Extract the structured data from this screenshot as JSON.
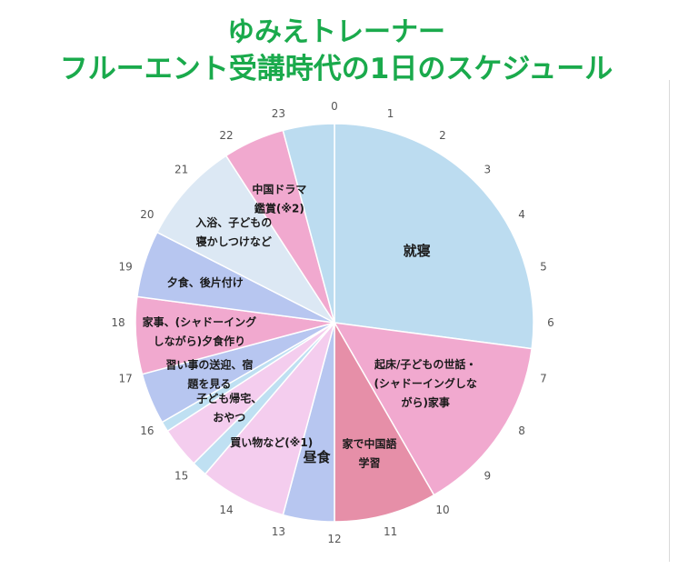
{
  "title": {
    "line1": "ゆみえトレーナー",
    "line2": "フルーエント受講時代の1日のスケジュール"
  },
  "chart_data": {
    "type": "pie",
    "hour_ticks": [
      "0",
      "1",
      "2",
      "3",
      "4",
      "5",
      "6",
      "7",
      "8",
      "9",
      "10",
      "11",
      "12",
      "13",
      "14",
      "15",
      "16",
      "17",
      "18",
      "19",
      "20",
      "21",
      "22",
      "23"
    ],
    "slices": [
      {
        "label": "就寝",
        "start": 0,
        "end": 6.5,
        "color": "#bcdcf0",
        "text_lines": [
          "就寝"
        ],
        "big": true
      },
      {
        "label": "起床/子どもの世話・(シャドーイングしながら)家事",
        "start": 6.5,
        "end": 10,
        "color": "#f1a9cf",
        "text_lines": [
          "起床/子どもの世話・",
          "(シャドーイングしな",
          "がら)家事"
        ],
        "big": false
      },
      {
        "label": "家で中国語学習",
        "start": 10,
        "end": 12,
        "color": "#e68fa8",
        "text_lines": [
          "家で中国語",
          "学習"
        ],
        "big": false
      },
      {
        "label": "昼食",
        "start": 12,
        "end": 13,
        "color": "#b7c6f0",
        "text_lines": [
          "昼食"
        ],
        "big": true
      },
      {
        "label": "買い物など(※1)",
        "start": 13,
        "end": 14.7,
        "color": "#f4cdee",
        "text_lines": [
          "買い物など(※1)"
        ],
        "big": false
      },
      {
        "label": "",
        "start": 14.7,
        "end": 15,
        "color": "#bfe0f2",
        "text_lines": [],
        "big": false
      },
      {
        "label": "子ども帰宅、おやつ",
        "start": 15,
        "end": 15.8,
        "color": "#f4cdee",
        "text_lines": [
          "子ども帰宅、",
          "おやつ"
        ],
        "big": false
      },
      {
        "label": "",
        "start": 15.8,
        "end": 16,
        "color": "#bfe0f2",
        "text_lines": [],
        "big": false
      },
      {
        "label": "習い事の送迎、宿題を見る",
        "start": 16,
        "end": 17,
        "color": "#b7c6f0",
        "text_lines": [
          "習い事の送迎、宿",
          "題を見る"
        ],
        "big": false
      },
      {
        "label": "家事、(シャドーイングしながら)夕食作り",
        "start": 17,
        "end": 18.5,
        "color": "#f1a9cf",
        "text_lines": [
          "家事、(シャドーイング",
          "しながら)夕食作り"
        ],
        "big": false
      },
      {
        "label": "夕食、後片付け",
        "start": 18.5,
        "end": 19.8,
        "color": "#b7c6f0",
        "text_lines": [
          "夕食、後片付け"
        ],
        "big": false
      },
      {
        "label": "入浴、子どもの寝かしつけなど",
        "start": 19.8,
        "end": 21.8,
        "color": "#dce8f4",
        "text_lines": [
          "入浴、子どもの",
          "寝かしつけなど"
        ],
        "big": false
      },
      {
        "label": "中国ドラマ鑑賞(※2)",
        "start": 21.8,
        "end": 23,
        "color": "#f1a9cf",
        "text_lines": [
          "中国ドラマ",
          "鑑賞(※2)"
        ],
        "big": false
      },
      {
        "label": "",
        "start": 23,
        "end": 24,
        "color": "#bcdcf0",
        "text_lines": [],
        "big": false
      }
    ]
  }
}
